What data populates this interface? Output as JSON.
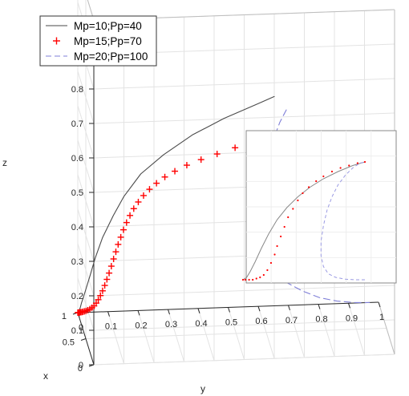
{
  "chart_data": [
    {
      "type": "line",
      "view": "3d",
      "xlabel": "x",
      "ylabel": "y",
      "zlabel": "z",
      "xlim": [
        0,
        1
      ],
      "ylim": [
        0,
        1
      ],
      "zlim": [
        0,
        1
      ],
      "xticks": [
        "0",
        "0.5",
        "1"
      ],
      "yticks": [
        "0",
        "0.1",
        "0.2",
        "0.3",
        "0.4",
        "0.5",
        "0.6",
        "0.7",
        "0.8",
        "0.9",
        "1"
      ],
      "zticks": [
        "0",
        "0.1",
        "0.2",
        "0.3",
        "0.4",
        "0.5",
        "0.6",
        "0.7",
        "0.8",
        "0.9",
        "1"
      ],
      "grid": true,
      "legend_position": "top-left",
      "colors": {
        "black": "#4a4a4a",
        "red": "#ff0000",
        "blue": "#7f7fd8"
      },
      "series": [
        {
          "name": "Mp=10;Pp=40",
          "style": "solid",
          "color": "#4a4a4a",
          "x": [
            1,
            1,
            0.998,
            0.996,
            0.99,
            0.975,
            0.95,
            0.91,
            0.85,
            0.77,
            0.66,
            0.56,
            0.45,
            0.34,
            0.24,
            0.14,
            0.05,
            0
          ],
          "y": [
            0,
            0.002,
            0.005,
            0.008,
            0.012,
            0.018,
            0.026,
            0.036,
            0.05,
            0.07,
            0.1,
            0.13,
            0.18,
            0.25,
            0.34,
            0.44,
            0.54,
            0.6
          ],
          "z": [
            0,
            0.003,
            0.008,
            0.015,
            0.03,
            0.05,
            0.08,
            0.12,
            0.18,
            0.25,
            0.33,
            0.4,
            0.48,
            0.55,
            0.62,
            0.68,
            0.73,
            0.76
          ]
        },
        {
          "name": "Mp=15;Pp=70",
          "style": "markers",
          "marker": "+",
          "color": "#ff0000",
          "x": [
            1,
            1,
            1,
            1,
            1,
            1,
            1,
            1,
            1,
            1,
            1,
            0.999,
            0.998,
            0.997,
            0.995,
            0.992,
            0.988,
            0.984,
            0.978,
            0.97,
            0.962,
            0.952,
            0.94,
            0.925,
            0.907,
            0.885,
            0.86,
            0.83,
            0.79,
            0.745,
            0.69,
            0.63,
            0.56,
            0.48,
            0.39,
            0.29,
            0.19,
            0.1,
            0.03,
            0
          ],
          "y": [
            0,
            0.003,
            0.006,
            0.009,
            0.013,
            0.017,
            0.022,
            0.027,
            0.033,
            0.04,
            0.047,
            0.054,
            0.061,
            0.068,
            0.075,
            0.082,
            0.089,
            0.096,
            0.103,
            0.11,
            0.117,
            0.124,
            0.131,
            0.139,
            0.147,
            0.156,
            0.166,
            0.177,
            0.19,
            0.205,
            0.222,
            0.242,
            0.266,
            0.295,
            0.33,
            0.372,
            0.42,
            0.475,
            0.53,
            0.575
          ],
          "z": [
            0,
            0,
            0,
            0.001,
            0.001,
            0.002,
            0.003,
            0.004,
            0.006,
            0.009,
            0.013,
            0.018,
            0.026,
            0.036,
            0.048,
            0.062,
            0.078,
            0.096,
            0.115,
            0.136,
            0.158,
            0.18,
            0.203,
            0.226,
            0.25,
            0.274,
            0.298,
            0.322,
            0.347,
            0.372,
            0.398,
            0.424,
            0.452,
            0.48,
            0.51,
            0.54,
            0.57,
            0.6,
            0.63,
            0.65
          ]
        },
        {
          "name": "Mp=20;Pp=100",
          "style": "dashed",
          "color": "#7f7fd8",
          "x": [
            0,
            0.03,
            0.08,
            0.14,
            0.22,
            0.31,
            0.4,
            0.5,
            0.6,
            0.7,
            0.79,
            0.87,
            0.93,
            0.97,
            0.99,
            1
          ],
          "y": [
            0.64,
            0.62,
            0.6,
            0.58,
            0.56,
            0.55,
            0.55,
            0.56,
            0.59,
            0.63,
            0.68,
            0.74,
            0.8,
            0.86,
            0.92,
            0.97
          ],
          "z": [
            0.72,
            0.68,
            0.62,
            0.56,
            0.5,
            0.44,
            0.37,
            0.3,
            0.23,
            0.16,
            0.1,
            0.06,
            0.03,
            0.012,
            0.003,
            0
          ]
        }
      ]
    },
    {
      "type": "line",
      "view": "inset",
      "series": [
        {
          "name": "Mp=10;Pp=40",
          "style": "solid",
          "color": "#888888",
          "u": [
            0,
            0.03,
            0.06,
            0.1,
            0.15,
            0.21,
            0.28,
            0.36,
            0.45,
            0.55,
            0.66,
            0.78,
            0.9,
            1
          ],
          "v": [
            0,
            0.02,
            0.07,
            0.15,
            0.26,
            0.38,
            0.5,
            0.6,
            0.69,
            0.77,
            0.84,
            0.9,
            0.95,
            0.98
          ]
        },
        {
          "name": "Mp=15;Pp=70",
          "style": "markers",
          "color": "#ff0000",
          "u": [
            0,
            0.02,
            0.05,
            0.08,
            0.11,
            0.14,
            0.17,
            0.2,
            0.23,
            0.26,
            0.28,
            0.31,
            0.34,
            0.37,
            0.41,
            0.45,
            0.49,
            0.54,
            0.6,
            0.66,
            0.73,
            0.8,
            0.87,
            0.94,
            1
          ],
          "v": [
            0,
            0,
            0,
            0,
            0.01,
            0.02,
            0.04,
            0.08,
            0.14,
            0.21,
            0.28,
            0.36,
            0.44,
            0.52,
            0.59,
            0.66,
            0.72,
            0.77,
            0.82,
            0.86,
            0.9,
            0.93,
            0.95,
            0.97,
            0.98
          ]
        },
        {
          "name": "Mp=20;Pp=100",
          "style": "dashed",
          "color": "#9b9be3",
          "u": [
            1,
            0.92,
            0.84,
            0.76,
            0.7,
            0.66,
            0.64,
            0.64,
            0.66,
            0.69,
            0.73,
            0.78,
            0.84,
            0.9,
            0.96,
            1
          ],
          "v": [
            0,
            0,
            0.005,
            0.02,
            0.05,
            0.11,
            0.2,
            0.32,
            0.45,
            0.58,
            0.69,
            0.79,
            0.87,
            0.93,
            0.97,
            0.98
          ]
        }
      ]
    }
  ]
}
